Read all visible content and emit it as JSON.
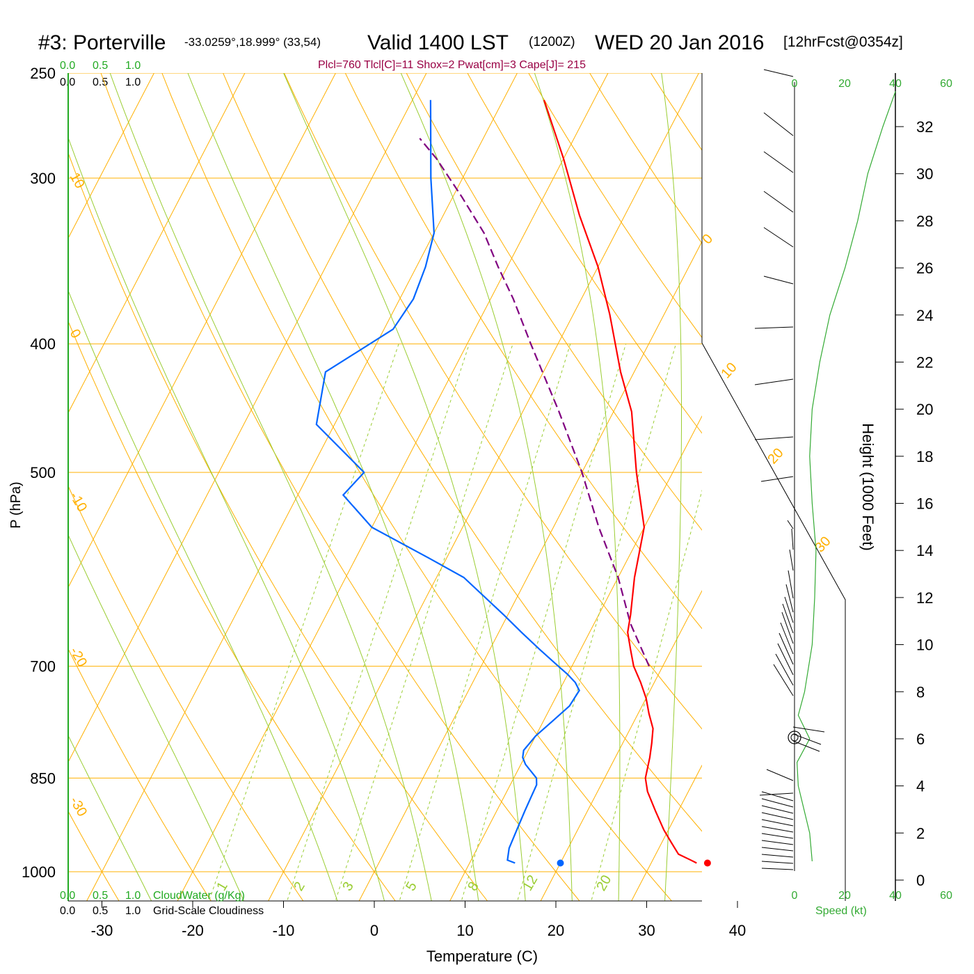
{
  "header": {
    "station": "#3: Porterville",
    "coords": "-33.0259°,18.999° (33,54)",
    "valid": "Valid 1400 LST",
    "utc": "(1200Z)",
    "date": "WED 20 Jan 2016",
    "forecast": "[12hrFcst@0354z]",
    "indices": "Plcl=760 Tlcl[C]=11 Shox=2 Pwat[cm]=3 Cape[J]= 215"
  },
  "scale_top": {
    "green": [
      "0.0",
      "0.5",
      "1.0"
    ],
    "black": [
      "0.0",
      "0.5",
      "1.0"
    ]
  },
  "scale_bottom": {
    "green": [
      "0.0",
      "0.5",
      "1.0"
    ],
    "green_label": "CloudWater (g/Kg)",
    "black": [
      "0.0",
      "0.5",
      "1.0"
    ],
    "black_label": "Grid-Scale Cloudiness"
  },
  "colors": {
    "temperature": "#ff0000",
    "dewpoint": "#0066ff",
    "parcel": "#800080",
    "isotherm_adiabat": "#ffb000",
    "moist_adiabat": "#9acd32",
    "mixing_ratio": "#9acd32",
    "wind_speed": "#33aa33",
    "header_indices": "#990044"
  },
  "chart_data": {
    "type": "skew-t",
    "xlabel": "Temperature (C)",
    "ylabel": "P (hPa)",
    "y2label": "Height (1000 Feet)",
    "x_ticks": [
      -30,
      -20,
      -10,
      0,
      10,
      20,
      30,
      40
    ],
    "p_ticks": [
      250,
      300,
      400,
      500,
      700,
      850,
      1000
    ],
    "height_ticks": [
      0,
      2,
      4,
      6,
      8,
      10,
      12,
      14,
      16,
      18,
      20,
      22,
      24,
      26,
      28,
      30,
      32
    ],
    "adiabat_labels": [
      "10",
      "0",
      "-10",
      "-20",
      "-30"
    ],
    "isotherm_labels": [
      "0",
      "10",
      "20",
      "30"
    ],
    "mixing_ratio_labels": [
      "1",
      "2",
      "3",
      "5",
      "8",
      "12",
      "20"
    ],
    "speed_label": "Speed (kt)",
    "speed_ticks": [
      "0",
      "20",
      "40",
      "60"
    ],
    "temperature": {
      "p": [
        985,
        980,
        970,
        950,
        930,
        900,
        870,
        850,
        820,
        800,
        780,
        760,
        740,
        720,
        700,
        680,
        660,
        640,
        600,
        550,
        500,
        450,
        420,
        380,
        350,
        320,
        290,
        262
      ],
      "t": [
        35,
        34.2,
        32.5,
        31,
        29.5,
        27.5,
        25.5,
        24.5,
        23.8,
        23.2,
        22.5,
        21.2,
        20,
        18.5,
        16.8,
        15.5,
        14.2,
        13.5,
        11.8,
        10,
        6,
        2,
        -1.5,
        -6,
        -10,
        -15,
        -20,
        -25.5
      ]
    },
    "dewpoint": {
      "p": [
        985,
        980,
        960,
        930,
        900,
        880,
        860,
        850,
        840,
        830,
        820,
        810,
        790,
        770,
        750,
        730,
        720,
        710,
        700,
        680,
        660,
        640,
        600,
        580,
        550,
        520,
        500,
        460,
        420,
        390,
        370,
        350,
        330,
        300,
        270,
        262
      ],
      "dp": [
        15,
        14,
        13.5,
        13.3,
        13.1,
        13.0,
        12.9,
        12.5,
        11.5,
        10.5,
        9.8,
        9.5,
        10.0,
        11.0,
        12.0,
        12.2,
        11.3,
        10.0,
        8.5,
        5.5,
        2.5,
        -0.5,
        -7,
        -12,
        -20,
        -25,
        -24,
        -32,
        -34,
        -29,
        -28.5,
        -29,
        -30,
        -33.5,
        -37,
        -38
      ]
    },
    "parcel": {
      "p": [
        700,
        650,
        600,
        550,
        500,
        450,
        400,
        370,
        350,
        330,
        310,
        290,
        280
      ],
      "t": [
        18.5,
        14,
        10,
        5,
        0,
        -6,
        -13,
        -17.5,
        -21,
        -24.5,
        -29,
        -34,
        -37
      ]
    },
    "surface_markers": {
      "temperature": 36.2,
      "temperature_p": 985,
      "dewpoint": 20,
      "dewpoint_p": 985
    },
    "wind_speed_profile_kt": {
      "height_kft": [
        0.8,
        2,
        4,
        5,
        6,
        7,
        8,
        10,
        12,
        14,
        16,
        18,
        20,
        22,
        24,
        26,
        28,
        30,
        32,
        33.5
      ],
      "speed": [
        7,
        6,
        1.5,
        1,
        6,
        1.5,
        4,
        7,
        8,
        8.5,
        7,
        6,
        7,
        10,
        14,
        20,
        25,
        29,
        35,
        40
      ]
    }
  }
}
